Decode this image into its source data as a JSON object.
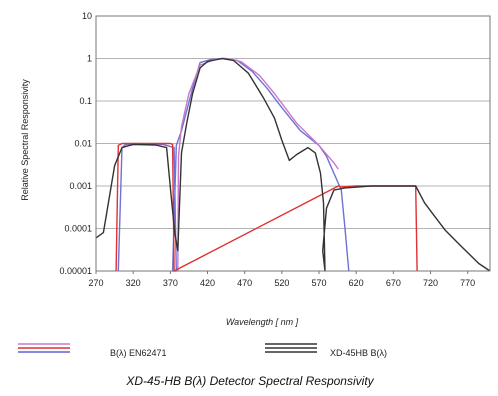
{
  "chart_data": {
    "type": "line",
    "title": "XD-45-HB B(λ) Detector Spectral Responsivity",
    "xlabel": "Wavelength [ nm ]",
    "ylabel": "Relative Spectral Responsivity",
    "y_scale": "log",
    "ylim": [
      1e-05,
      10
    ],
    "xlim": [
      270,
      800
    ],
    "x_ticks": [
      270,
      320,
      370,
      420,
      470,
      520,
      570,
      620,
      670,
      720,
      770
    ],
    "y_ticks": [
      {
        "value": 1e-05,
        "label": "0.00001"
      },
      {
        "value": 0.0001,
        "label": "0.0001"
      },
      {
        "value": 0.001,
        "label": "0.001"
      },
      {
        "value": 0.01,
        "label": "0.01"
      },
      {
        "value": 0.1,
        "label": "0.1"
      },
      {
        "value": 1,
        "label": "1"
      },
      {
        "value": 10,
        "label": "10"
      }
    ],
    "grid": "horizontal",
    "legend_position": "bottom",
    "legend": [
      {
        "label": "B(λ) EN62471",
        "colors": [
          "#c878c8",
          "#e03030",
          "#6060d0"
        ]
      },
      {
        "label": "XD-45HB B(λ)",
        "colors": [
          "#333333",
          "#333333",
          "#333333"
        ]
      }
    ],
    "series": [
      {
        "color": "#7070d8",
        "points": [
          [
            300,
            1e-05
          ],
          [
            305,
            0.008
          ],
          [
            310,
            0.0095
          ],
          [
            330,
            0.0095
          ],
          [
            360,
            0.0095
          ],
          [
            375,
            0.008
          ],
          [
            378,
            1e-05
          ],
          [
            373,
            1e-05
          ],
          [
            378,
            0.009
          ],
          [
            385,
            0.02
          ],
          [
            400,
            0.2
          ],
          [
            410,
            0.8
          ],
          [
            425,
            0.95
          ],
          [
            440,
            1.0
          ],
          [
            460,
            0.9
          ],
          [
            480,
            0.5
          ],
          [
            500,
            0.2
          ],
          [
            520,
            0.07
          ],
          [
            545,
            0.02
          ],
          [
            570,
            0.009
          ],
          [
            580,
            0.005
          ],
          [
            590,
            0.002
          ],
          [
            600,
            0.0008
          ],
          [
            605,
            0.0001
          ],
          [
            610,
            1e-05
          ]
        ]
      },
      {
        "color": "#c878c8",
        "points": [
          [
            380,
            1e-05
          ],
          [
            381,
            0.005
          ],
          [
            385,
            0.025
          ],
          [
            395,
            0.15
          ],
          [
            410,
            0.7
          ],
          [
            430,
            0.95
          ],
          [
            445,
            1.0
          ],
          [
            465,
            0.85
          ],
          [
            490,
            0.4
          ],
          [
            510,
            0.15
          ],
          [
            540,
            0.03
          ],
          [
            570,
            0.009
          ],
          [
            590,
            0.0035
          ],
          [
            596,
            0.0025
          ]
        ]
      },
      {
        "color": "#e03030",
        "points": [
          [
            297,
            1e-05
          ],
          [
            300,
            0.009
          ],
          [
            305,
            0.01
          ],
          [
            370,
            0.01
          ],
          [
            373,
            0.0095
          ],
          [
            375,
            1e-05
          ],
          [
            596,
            0.001
          ],
          [
            600,
            0.00095
          ],
          [
            620,
            0.001
          ],
          [
            680,
            0.001
          ],
          [
            700,
            0.001
          ],
          [
            702,
            1e-05
          ]
        ]
      },
      {
        "color": "#333333",
        "points": [
          [
            270,
            6e-05
          ],
          [
            280,
            8e-05
          ],
          [
            290,
            0.0009
          ],
          [
            295,
            0.003
          ],
          [
            305,
            0.008
          ],
          [
            320,
            0.0095
          ],
          [
            350,
            0.0092
          ],
          [
            365,
            0.008
          ],
          [
            372,
            0.0004
          ],
          [
            376,
            8e-05
          ],
          [
            380,
            3e-05
          ],
          [
            385,
            0.006
          ],
          [
            392,
            0.03
          ],
          [
            400,
            0.15
          ],
          [
            410,
            0.6
          ],
          [
            420,
            0.85
          ],
          [
            440,
            1.0
          ],
          [
            455,
            0.9
          ],
          [
            475,
            0.45
          ],
          [
            495,
            0.12
          ],
          [
            510,
            0.04
          ],
          [
            520,
            0.012
          ],
          [
            530,
            0.004
          ],
          [
            540,
            0.0055
          ],
          [
            555,
            0.008
          ],
          [
            565,
            0.006
          ],
          [
            572,
            0.002
          ],
          [
            576,
            0.0004
          ],
          [
            578,
            1e-05
          ],
          [
            575,
            3e-05
          ],
          [
            580,
            0.0003
          ],
          [
            590,
            0.0008
          ],
          [
            605,
            0.0009
          ],
          [
            640,
            0.001
          ],
          [
            685,
            0.001
          ],
          [
            700,
            0.001
          ],
          [
            712,
            0.0004
          ],
          [
            725,
            0.0002
          ],
          [
            740,
            9e-05
          ],
          [
            760,
            4e-05
          ],
          [
            785,
            1.5e-05
          ],
          [
            800,
            1e-05
          ]
        ]
      }
    ]
  }
}
